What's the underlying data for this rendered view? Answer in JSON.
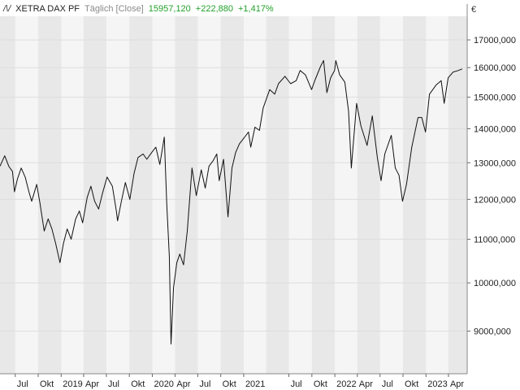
{
  "header": {
    "logo_glyph": "/\\/",
    "symbol": "XETRA DAX PF",
    "interval": "Täglich [Close]",
    "last": "15957,120",
    "change": "+222,880",
    "change_pct": "+1,417%"
  },
  "currency": "€",
  "colors": {
    "line": "#111111",
    "positive": "#22a02a",
    "band_dark": "#e8e8e8",
    "band_light": "#f5f5f5"
  },
  "chart_data": {
    "type": "line",
    "title": "",
    "y_scale": "log",
    "ylim": [
      8200,
      17900
    ],
    "xlim": [
      "2018-05-01",
      "2023-06-15"
    ],
    "y_ticks": [
      {
        "value": 17000,
        "label": "17000,000"
      },
      {
        "value": 16000,
        "label": "16000,000"
      },
      {
        "value": 15000,
        "label": "15000,000"
      },
      {
        "value": 14000,
        "label": "14000,000"
      },
      {
        "value": 13000,
        "label": "13000,000"
      },
      {
        "value": 12000,
        "label": "12000,000"
      },
      {
        "value": 11000,
        "label": "11000,000"
      },
      {
        "value": 10000,
        "label": "10000,000"
      },
      {
        "value": 9000,
        "label": "9000,000"
      }
    ],
    "x_ticks": [
      {
        "date": "2018-07-01",
        "label": "Jul"
      },
      {
        "date": "2018-10-01",
        "label": "Okt"
      },
      {
        "date": "2019-01-01",
        "label": "2019"
      },
      {
        "date": "2019-04-01",
        "label": "Apr"
      },
      {
        "date": "2019-07-01",
        "label": "Jul"
      },
      {
        "date": "2019-10-01",
        "label": "Okt"
      },
      {
        "date": "2020-01-01",
        "label": "2020"
      },
      {
        "date": "2020-04-01",
        "label": "Apr"
      },
      {
        "date": "2020-07-01",
        "label": "Jul"
      },
      {
        "date": "2020-10-01",
        "label": "Okt"
      },
      {
        "date": "2021-01-01",
        "label": "2021"
      },
      {
        "date": "2021-07-01",
        "label": "Jul"
      },
      {
        "date": "2021-10-01",
        "label": "Okt"
      },
      {
        "date": "2022-01-01",
        "label": "2022"
      },
      {
        "date": "2022-04-01",
        "label": "Apr"
      },
      {
        "date": "2022-07-01",
        "label": "Jul"
      },
      {
        "date": "2022-10-01",
        "label": "Okt"
      },
      {
        "date": "2023-01-01",
        "label": "2023"
      },
      {
        "date": "2023-04-01",
        "label": "Apr"
      }
    ],
    "series": [
      {
        "values": [
          [
            "2018-05-01",
            12900
          ],
          [
            "2018-05-20",
            13200
          ],
          [
            "2018-06-05",
            12900
          ],
          [
            "2018-06-20",
            12750
          ],
          [
            "2018-06-28",
            12200
          ],
          [
            "2018-07-10",
            12550
          ],
          [
            "2018-07-25",
            12850
          ],
          [
            "2018-08-10",
            12600
          ],
          [
            "2018-08-25",
            12200
          ],
          [
            "2018-09-05",
            11950
          ],
          [
            "2018-09-25",
            12400
          ],
          [
            "2018-10-08",
            11900
          ],
          [
            "2018-10-25",
            11200
          ],
          [
            "2018-11-10",
            11500
          ],
          [
            "2018-11-25",
            11250
          ],
          [
            "2018-12-10",
            10900
          ],
          [
            "2018-12-27",
            10450
          ],
          [
            "2019-01-10",
            10900
          ],
          [
            "2019-01-25",
            11250
          ],
          [
            "2019-02-10",
            11000
          ],
          [
            "2019-02-28",
            11500
          ],
          [
            "2019-03-15",
            11700
          ],
          [
            "2019-03-28",
            11400
          ],
          [
            "2019-04-15",
            12050
          ],
          [
            "2019-04-30",
            12350
          ],
          [
            "2019-05-15",
            11950
          ],
          [
            "2019-05-31",
            11750
          ],
          [
            "2019-06-15",
            12150
          ],
          [
            "2019-07-04",
            12600
          ],
          [
            "2019-07-25",
            12350
          ],
          [
            "2019-08-10",
            11700
          ],
          [
            "2019-08-15",
            11450
          ],
          [
            "2019-08-30",
            11950
          ],
          [
            "2019-09-15",
            12450
          ],
          [
            "2019-10-03",
            12000
          ],
          [
            "2019-10-20",
            12700
          ],
          [
            "2019-11-05",
            13150
          ],
          [
            "2019-11-25",
            13250
          ],
          [
            "2019-12-10",
            13100
          ],
          [
            "2019-12-30",
            13300
          ],
          [
            "2020-01-15",
            13450
          ],
          [
            "2020-01-31",
            12950
          ],
          [
            "2020-02-18",
            13750
          ],
          [
            "2020-02-28",
            11850
          ],
          [
            "2020-03-09",
            10600
          ],
          [
            "2020-03-16",
            8750
          ],
          [
            "2020-03-26",
            9900
          ],
          [
            "2020-04-08",
            10450
          ],
          [
            "2020-04-20",
            10650
          ],
          [
            "2020-05-05",
            10400
          ],
          [
            "2020-05-20",
            11200
          ],
          [
            "2020-06-08",
            12850
          ],
          [
            "2020-06-25",
            12100
          ],
          [
            "2020-07-15",
            12800
          ],
          [
            "2020-07-31",
            12300
          ],
          [
            "2020-08-15",
            12900
          ],
          [
            "2020-08-31",
            13050
          ],
          [
            "2020-09-15",
            13250
          ],
          [
            "2020-09-25",
            12500
          ],
          [
            "2020-10-12",
            13100
          ],
          [
            "2020-10-30",
            11550
          ],
          [
            "2020-11-15",
            12850
          ],
          [
            "2020-11-30",
            13300
          ],
          [
            "2020-12-15",
            13550
          ],
          [
            "2020-12-31",
            13700
          ],
          [
            "2021-01-20",
            13900
          ],
          [
            "2021-01-29",
            13450
          ],
          [
            "2021-02-15",
            14050
          ],
          [
            "2021-03-05",
            13950
          ],
          [
            "2021-03-20",
            14650
          ],
          [
            "2021-04-15",
            15250
          ],
          [
            "2021-05-05",
            15100
          ],
          [
            "2021-05-20",
            15450
          ],
          [
            "2021-06-15",
            15700
          ],
          [
            "2021-07-08",
            15450
          ],
          [
            "2021-07-30",
            15550
          ],
          [
            "2021-08-15",
            15900
          ],
          [
            "2021-09-05",
            15750
          ],
          [
            "2021-09-30",
            15250
          ],
          [
            "2021-10-15",
            15600
          ],
          [
            "2021-11-05",
            16050
          ],
          [
            "2021-11-17",
            16250
          ],
          [
            "2021-11-30",
            15150
          ],
          [
            "2021-12-15",
            15650
          ],
          [
            "2021-12-31",
            15900
          ],
          [
            "2022-01-05",
            16250
          ],
          [
            "2022-01-20",
            15750
          ],
          [
            "2022-02-10",
            15500
          ],
          [
            "2022-02-25",
            14550
          ],
          [
            "2022-03-08",
            12850
          ],
          [
            "2022-03-29",
            14800
          ],
          [
            "2022-04-15",
            14100
          ],
          [
            "2022-05-10",
            13500
          ],
          [
            "2022-05-31",
            14400
          ],
          [
            "2022-06-20",
            13150
          ],
          [
            "2022-07-05",
            12500
          ],
          [
            "2022-07-20",
            13250
          ],
          [
            "2022-08-15",
            13800
          ],
          [
            "2022-08-31",
            12850
          ],
          [
            "2022-09-15",
            12650
          ],
          [
            "2022-09-29",
            11950
          ],
          [
            "2022-10-15",
            12400
          ],
          [
            "2022-11-05",
            13450
          ],
          [
            "2022-11-30",
            14350
          ],
          [
            "2022-12-15",
            14350
          ],
          [
            "2022-12-30",
            13900
          ],
          [
            "2023-01-15",
            15100
          ],
          [
            "2023-02-10",
            15400
          ],
          [
            "2023-03-03",
            15550
          ],
          [
            "2023-03-15",
            14800
          ],
          [
            "2023-03-31",
            15650
          ],
          [
            "2023-04-20",
            15850
          ],
          [
            "2023-05-10",
            15900
          ],
          [
            "2023-05-26",
            15957
          ]
        ]
      }
    ],
    "legend": "none",
    "grid": "horizontal",
    "background_bands": "quarterly alternating"
  }
}
